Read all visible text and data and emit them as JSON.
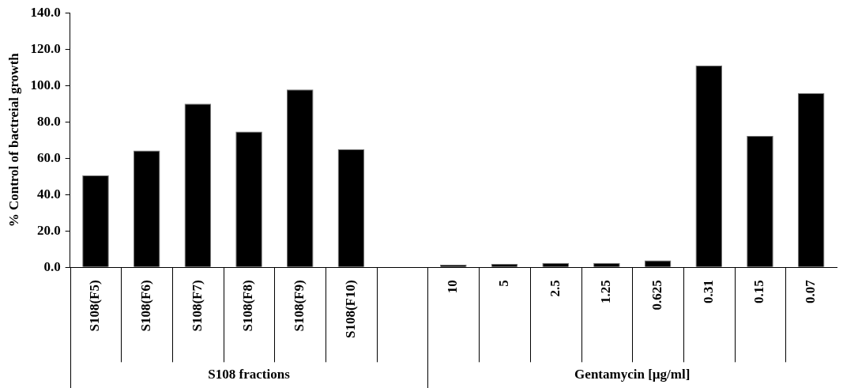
{
  "chart_data": {
    "type": "bar",
    "ylabel": "% Control of bactreial growth",
    "categories": [
      "S108(F5)",
      "S108(F6)",
      "S108(F7)",
      "S108(F8)",
      "S108(F9)",
      "S108(F10)",
      null,
      "10",
      "5",
      "2.5",
      "1.25",
      "0.625",
      "0.31",
      "0.15",
      "0.07"
    ],
    "values": [
      50.6,
      64.3,
      90.0,
      74.7,
      97.8,
      65.0,
      null,
      1.4,
      1.9,
      2.4,
      2.4,
      3.8,
      111.0,
      72.3,
      95.9
    ],
    "color": "#000000",
    "ylim": [
      0,
      140
    ],
    "yticks": [
      {
        "value": 0,
        "label": "0.0"
      },
      {
        "value": 20,
        "label": "20.0"
      },
      {
        "value": 40,
        "label": "40.0"
      },
      {
        "value": 60,
        "label": "60.0"
      },
      {
        "value": 80,
        "label": "80.0"
      },
      {
        "value": 100,
        "label": "100.0"
      },
      {
        "value": 120,
        "label": "120.0"
      },
      {
        "value": 140,
        "label": "140.0"
      }
    ],
    "annotations": [
      "S108 fractions",
      "Gentamycin [µg/ml]"
    ],
    "grid": false,
    "legend": false
  }
}
